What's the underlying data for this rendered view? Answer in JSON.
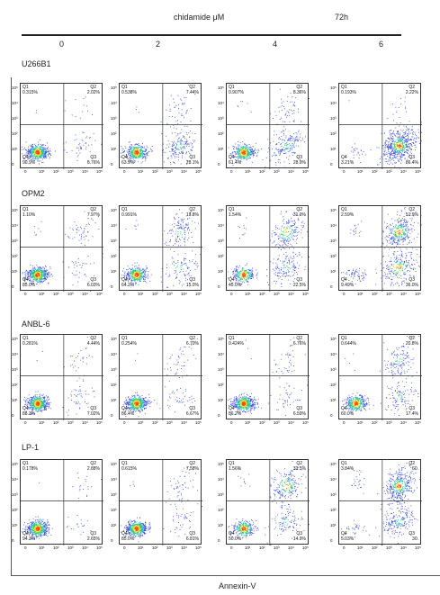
{
  "header": {
    "treatment_label": "chidamide μM",
    "time_label": "72h"
  },
  "xaxis_label": "Annexin-V",
  "chart_data": {
    "type": "scatter",
    "title": "",
    "xlabel": "Annexin-V",
    "concentrations": [
      "0",
      "2",
      "4",
      "6"
    ],
    "rows": [
      {
        "cell_line": "U266B1",
        "panels": [
          {
            "q1": "0.315%",
            "q2": "2.02%",
            "q3": "6.76%",
            "q4": "90.9%"
          },
          {
            "q1": "0.538%",
            "q2": "7.44%",
            "q3": "28.1%",
            "q4": "63.9%"
          },
          {
            "q1": "0.907%",
            "q2": "8.36%",
            "q3": "28.9%",
            "q4": "61.4%"
          },
          {
            "q1": "0.193%",
            "q2": "2.22%",
            "q3": "86.4%",
            "q4": "3.21%"
          }
        ]
      },
      {
        "cell_line": "OPM2",
        "panels": [
          {
            "q1": "1.10%",
            "q2": "7.97%",
            "q3": "6.03%",
            "q4": "85.0%"
          },
          {
            "q1": "0.991%",
            "q2": "19.8%",
            "q3": "15.0%",
            "q4": "64.2%"
          },
          {
            "q1": "1.54%",
            "q2": "31.0%",
            "q3": "22.5%",
            "q4": "45.0%"
          },
          {
            "q1": "2.59%",
            "q2": "51.9%",
            "q3": "36.0%",
            "q4": "9.49%"
          }
        ]
      },
      {
        "cell_line": "ANBL-6",
        "panels": [
          {
            "q1": "0.281%",
            "q2": "4.44%",
            "q3": "7.02%",
            "q4": "88.3%"
          },
          {
            "q1": "0.254%",
            "q2": "6.70%",
            "q3": "6.67%",
            "q4": "86.4%"
          },
          {
            "q1": "0.424%",
            "q2": "6.76%",
            "q3": "6.59%",
            "q4": "86.2%"
          },
          {
            "q1": "0.644%",
            "q2": "20.8%",
            "q3": "17.4%",
            "q4": "60.0%"
          }
        ]
      },
      {
        "cell_line": "LP-1",
        "panels": [
          {
            "q1": "0.178%",
            "q2": "2.88%",
            "q3": "2.65%",
            "q4": "94.3%"
          },
          {
            "q1": "0.615%",
            "q2": "7.58%",
            "q3": "6.81%",
            "q4": "85.0%"
          },
          {
            "q1": "1.56%",
            "q2": "33.5%",
            "q3": "14.9%",
            "q4": "50.0%"
          },
          {
            "q1": "3.84%",
            "q2": "60.",
            "q3": "30.",
            "q4": "5.03%"
          }
        ]
      }
    ]
  }
}
